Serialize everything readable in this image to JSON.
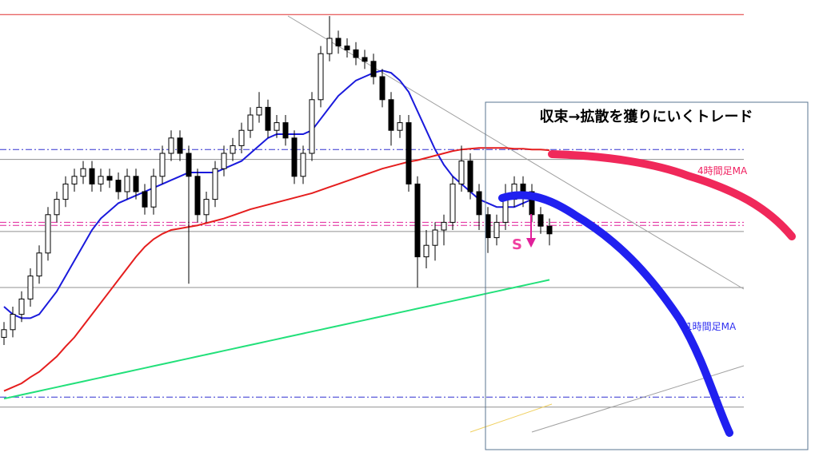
{
  "chart_data": {
    "type": "candlestick",
    "title": "収束→拡散を獲りにいくトレード",
    "ylim": [
      100,
      160
    ],
    "up_color": "#ffffff",
    "down_color": "#000000",
    "ohlc": [
      [
        116,
        118,
        115,
        117
      ],
      [
        117,
        120,
        116,
        119
      ],
      [
        119,
        122,
        118,
        121
      ],
      [
        121,
        125,
        120,
        124
      ],
      [
        124,
        128,
        123,
        127
      ],
      [
        127,
        133,
        126,
        132
      ],
      [
        132,
        135,
        131,
        134
      ],
      [
        134,
        137,
        133,
        136
      ],
      [
        136,
        138,
        135,
        137
      ],
      [
        137,
        139,
        136,
        138
      ],
      [
        138,
        139,
        135,
        136
      ],
      [
        136,
        138,
        135,
        137
      ],
      [
        137,
        138,
        135.5,
        136.5
      ],
      [
        136.5,
        137.5,
        134,
        135
      ],
      [
        135,
        138,
        134,
        137
      ],
      [
        137,
        138,
        134,
        135
      ],
      [
        135,
        136,
        132,
        133
      ],
      [
        133,
        138,
        132,
        137
      ],
      [
        137,
        141,
        136,
        140
      ],
      [
        140,
        143,
        139,
        142
      ],
      [
        142,
        143,
        139,
        140
      ],
      [
        140,
        141,
        123,
        137
      ],
      [
        137,
        138,
        131,
        132
      ],
      [
        132,
        135,
        131,
        134
      ],
      [
        134,
        139,
        133,
        138
      ],
      [
        138,
        141,
        137,
        140
      ],
      [
        140,
        142,
        139,
        141
      ],
      [
        141,
        144,
        140,
        143
      ],
      [
        143,
        146,
        142,
        145
      ],
      [
        145,
        148,
        144,
        146
      ],
      [
        146,
        147,
        142,
        143
      ],
      [
        143,
        145,
        142,
        144
      ],
      [
        144,
        145,
        141,
        142
      ],
      [
        142,
        143,
        136,
        137
      ],
      [
        137,
        141,
        136,
        140
      ],
      [
        140,
        148,
        139,
        147
      ],
      [
        147,
        154,
        146,
        153
      ],
      [
        153,
        157.9,
        152,
        155
      ],
      [
        155,
        156,
        153,
        154
      ],
      [
        154,
        155,
        152.5,
        153.5
      ],
      [
        153.5,
        154.5,
        151.5,
        152.5
      ],
      [
        152.5,
        153.5,
        151,
        152
      ],
      [
        152,
        153,
        149,
        150
      ],
      [
        150,
        151,
        146,
        147
      ],
      [
        147,
        148,
        141,
        143
      ],
      [
        143,
        145,
        142,
        144
      ],
      [
        144,
        145,
        135,
        136
      ],
      [
        136,
        137,
        122.5,
        126.5
      ],
      [
        126.5,
        130,
        125,
        128
      ],
      [
        128,
        131,
        126,
        130
      ],
      [
        130,
        132,
        128,
        131
      ],
      [
        131,
        137,
        130,
        136
      ],
      [
        136,
        141,
        135,
        139
      ],
      [
        139,
        140,
        134,
        135
      ],
      [
        135,
        136,
        130,
        132
      ],
      [
        132,
        133,
        127,
        129
      ],
      [
        129,
        132,
        128,
        131
      ],
      [
        131,
        136,
        130,
        134
      ],
      [
        134,
        137,
        133,
        136
      ],
      [
        136,
        137,
        133,
        135
      ],
      [
        135,
        136,
        131,
        132
      ],
      [
        132,
        133,
        129.5,
        130.5
      ],
      [
        130.5,
        131.5,
        128,
        129.5
      ]
    ],
    "series": [
      {
        "color": "#1a1adc",
        "values": [
          120,
          119,
          118.5,
          118.5,
          119,
          120.5,
          122,
          124,
          126,
          128,
          130,
          131.5,
          132.5,
          133.5,
          134,
          134.5,
          135,
          135.5,
          136,
          136.5,
          137,
          137.5,
          137.5,
          137.5,
          137.5,
          138,
          138.5,
          139,
          140,
          141,
          142,
          142.5,
          142.5,
          142.5,
          142.5,
          143,
          144.5,
          146,
          147.5,
          148.5,
          149.5,
          150,
          150.5,
          150.8,
          150.5,
          149.5,
          148,
          145.5,
          143,
          140.5,
          138.5,
          137,
          136,
          135,
          134,
          133.5,
          133,
          133,
          133,
          133.5,
          134,
          134,
          134
        ]
      },
      {
        "color": "#e51e1e",
        "values": [
          109,
          109.5,
          110,
          110.8,
          111.5,
          112.5,
          113.5,
          114.8,
          116,
          117.5,
          119,
          120.5,
          122,
          123.5,
          125,
          126.5,
          127.8,
          128.8,
          129.5,
          130,
          130.2,
          130.4,
          130.6,
          130.9,
          131.2,
          131.5,
          131.9,
          132.3,
          132.7,
          133,
          133.3,
          133.6,
          133.9,
          134.2,
          134.5,
          134.8,
          135.2,
          135.6,
          136,
          136.4,
          136.8,
          137.2,
          137.6,
          138,
          138.3,
          138.6,
          138.9,
          139.1,
          139.4,
          139.7,
          140,
          140.3,
          140.5,
          140.6,
          140.7,
          140.7,
          140.7,
          140.7,
          140.6,
          140.6,
          140.5,
          140.5,
          140.4
        ]
      },
      {
        "color": "#22e07a",
        "values": [
          108,
          108.25,
          108.5,
          108.75,
          109,
          109.25,
          109.5,
          109.75,
          110,
          110.25,
          110.5,
          110.75,
          111,
          111.25,
          111.5,
          111.75,
          112,
          112.25,
          112.5,
          112.75,
          113,
          113.25,
          113.5,
          113.75,
          114,
          114.25,
          114.5,
          114.75,
          115,
          115.25,
          115.5,
          115.75,
          116,
          116.25,
          116.5,
          116.75,
          117,
          117.25,
          117.5,
          117.75,
          118,
          118.25,
          118.5,
          118.75,
          119,
          119.25,
          119.5,
          119.75,
          120,
          120.25,
          120.5,
          120.75,
          121,
          121.25,
          121.5,
          121.75,
          122,
          122.25,
          122.5,
          122.75,
          123,
          123.25,
          123.5
        ]
      }
    ],
    "levels": [
      {
        "value": 158.1,
        "color": "#e03030",
        "style": "solid"
      },
      {
        "value": 140.5,
        "color": "#3030d0",
        "style": "dashdot"
      },
      {
        "value": 139.2,
        "color": "#909090",
        "style": "solid"
      },
      {
        "value": 131,
        "color": "#e0209a",
        "style": "dashdot"
      },
      {
        "value": 130.6,
        "color": "#e0209a",
        "style": "dashdot"
      },
      {
        "value": 129.8,
        "color": "#909090",
        "style": "solid"
      },
      {
        "value": 122.5,
        "color": "#909090",
        "style": "solid"
      },
      {
        "value": 108.2,
        "color": "#3030d0",
        "style": "dashdot"
      },
      {
        "value": 106.9,
        "color": "#909090",
        "style": "solid"
      }
    ],
    "annotations": [
      "4時間足MA",
      "1時間足MA",
      "S"
    ]
  }
}
